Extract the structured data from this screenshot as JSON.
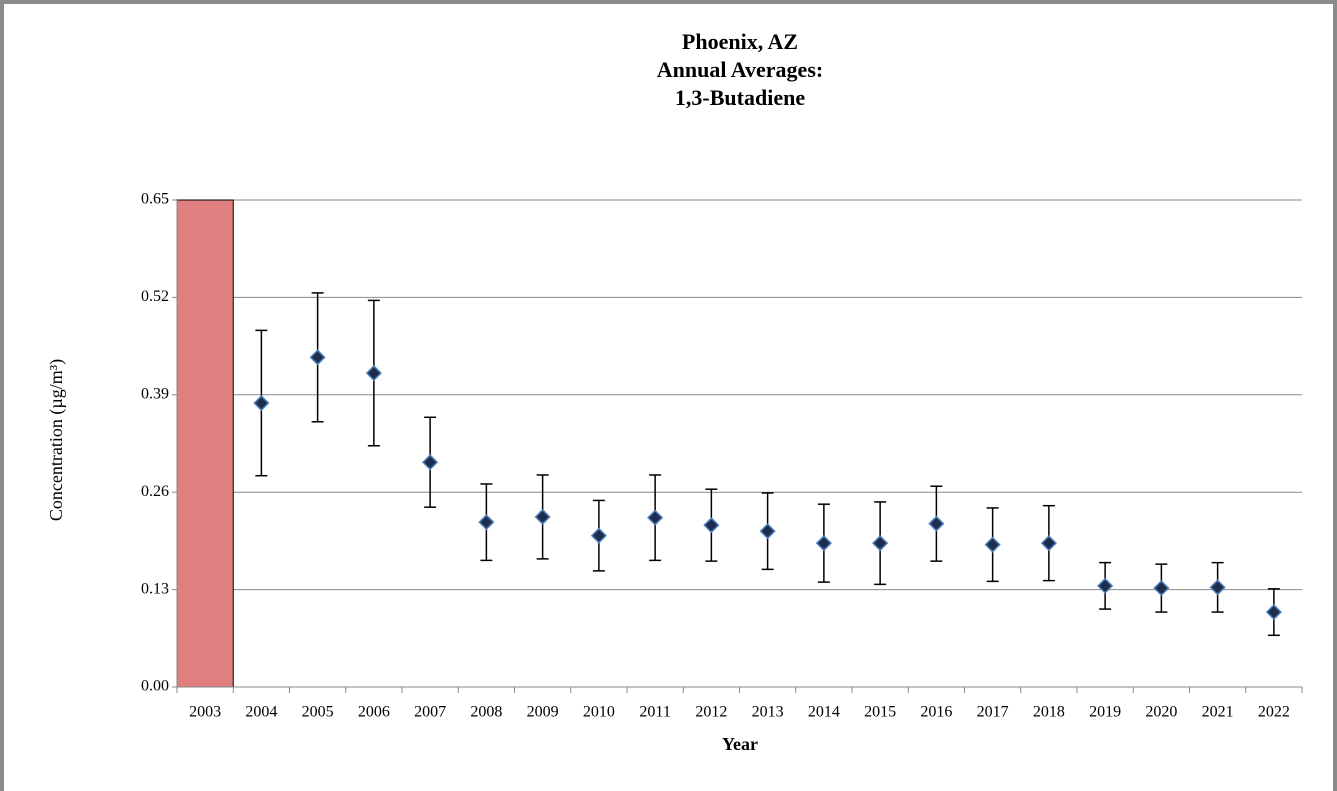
{
  "chart_data": {
    "type": "errorbar",
    "title": [
      "Phoenix, AZ",
      "Annual Averages:",
      "1,3-Butadiene"
    ],
    "x_label": "Year",
    "y_label": "Concentration (µg/m³)",
    "categories": [
      "2003",
      "2004",
      "2005",
      "2006",
      "2007",
      "2008",
      "2009",
      "2010",
      "2011",
      "2012",
      "2013",
      "2014",
      "2015",
      "2016",
      "2017",
      "2018",
      "2019",
      "2020",
      "2021",
      "2022"
    ],
    "values": [
      null,
      0.379,
      0.44,
      0.419,
      0.3,
      0.22,
      0.227,
      0.202,
      0.226,
      0.216,
      0.208,
      0.192,
      0.192,
      0.218,
      0.19,
      0.192,
      0.135,
      0.132,
      0.133,
      0.1
    ],
    "errors": [
      null,
      0.097,
      0.086,
      0.097,
      0.06,
      0.051,
      0.056,
      0.047,
      0.057,
      0.048,
      0.051,
      0.052,
      0.055,
      0.05,
      0.049,
      0.05,
      0.031,
      0.032,
      0.033,
      0.031
    ],
    "color": "#1f2d4d",
    "edge_color": "#4a7ebb",
    "missing_color": "#e07f7f",
    "ylim": [
      0,
      0.65
    ],
    "yticks": [
      {
        "value": 0,
        "label": "0.00"
      },
      0.13,
      0.26,
      0.39,
      0.52,
      0.65
    ],
    "grid": true
  }
}
